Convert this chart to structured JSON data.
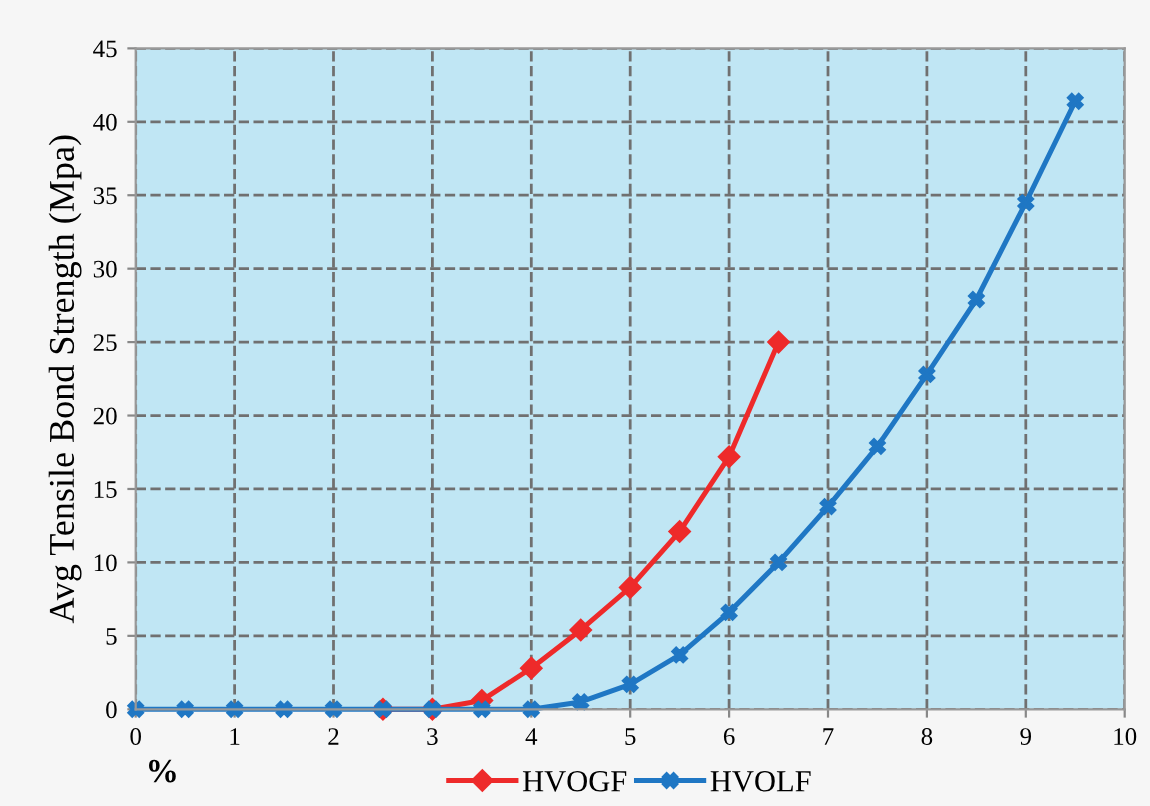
{
  "chart_data": {
    "type": "line",
    "ylabel": "Avg Tensile Bond Strength (Mpa)",
    "xlabel": "%",
    "xlim": [
      0,
      10
    ],
    "xticks": [
      0,
      1,
      2,
      3,
      4,
      5,
      6,
      7,
      8,
      9,
      10
    ],
    "ylim": [
      0,
      45
    ],
    "yticks": [
      0,
      5,
      10,
      15,
      20,
      25,
      30,
      35,
      40,
      45
    ],
    "grid": true,
    "legend": "bottom",
    "line_style": "solid",
    "series": [
      {
        "name": "HVOGF",
        "color": "#ee2a2a",
        "marker": "diamond",
        "x": [
          2.5,
          3,
          3.5,
          4,
          4.5,
          5,
          5.5,
          6,
          6.5
        ],
        "values": [
          0,
          0,
          0.6,
          2.8,
          5.4,
          8.3,
          12.1,
          17.2,
          25.0
        ]
      },
      {
        "name": "HVOLF",
        "color": "#1f77c4",
        "marker": "cross",
        "x": [
          0,
          0.5,
          1,
          1.5,
          2,
          2.5,
          3,
          3.5,
          4,
          4.5,
          5,
          5.5,
          6,
          6.5,
          7,
          7.5,
          8,
          8.5,
          9,
          9.5
        ],
        "values": [
          0,
          0,
          0,
          0,
          0,
          0,
          0,
          0,
          0,
          0.5,
          1.7,
          3.7,
          6.6,
          10.0,
          13.8,
          17.9,
          22.8,
          27.9,
          34.5,
          41.4
        ]
      }
    ]
  }
}
